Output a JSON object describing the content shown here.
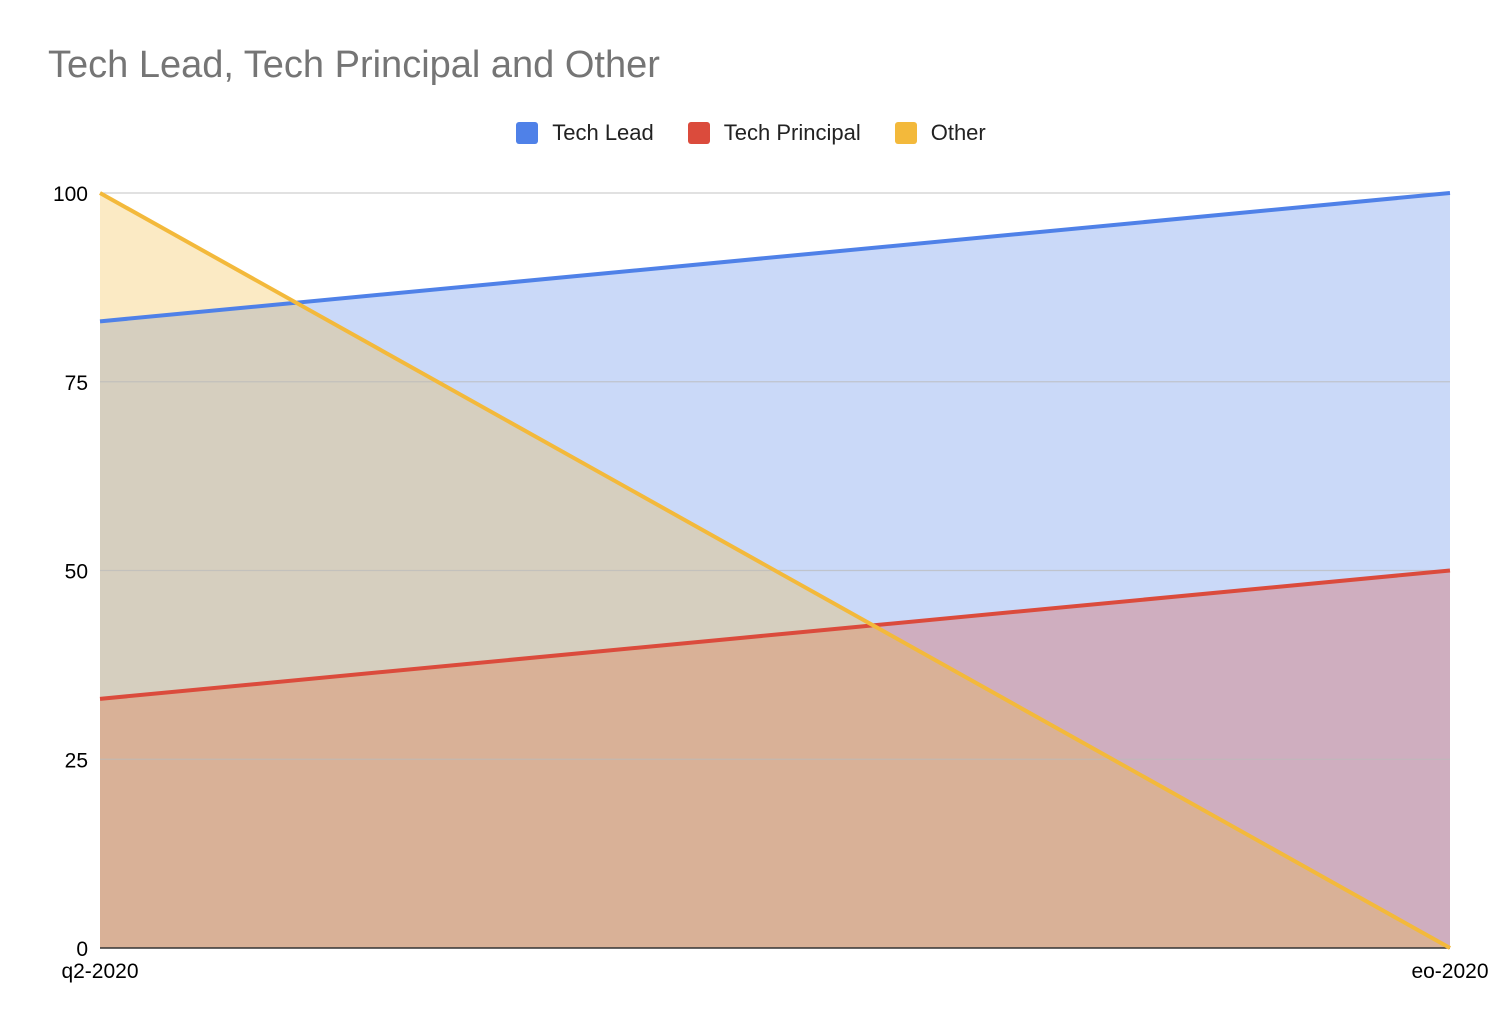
{
  "chart_data": {
    "type": "area",
    "title": "Tech Lead, Tech Principal and Other",
    "categories": [
      "q2-2020",
      "eo-2020"
    ],
    "series": [
      {
        "name": "Tech Lead",
        "values": [
          83,
          100
        ],
        "color": "#4f81e8"
      },
      {
        "name": "Tech Principal",
        "values": [
          33,
          50
        ],
        "color": "#db4b3c"
      },
      {
        "name": "Other",
        "values": [
          100,
          0
        ],
        "color": "#f3b93b"
      }
    ],
    "ylim": [
      0,
      100
    ],
    "yticks": [
      "0",
      "25",
      "50",
      "75",
      "100"
    ],
    "grid": true,
    "legend": "top",
    "xlabel": "",
    "ylabel": ""
  }
}
